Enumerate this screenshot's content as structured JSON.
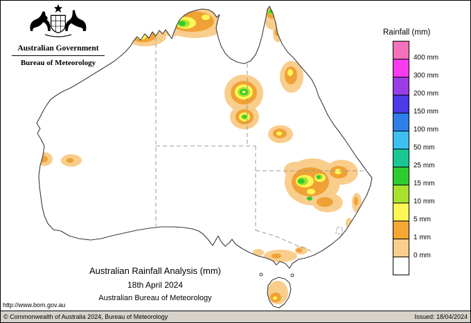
{
  "crest": {
    "line1": "Australian Government",
    "line2": "Bureau of Meteorology"
  },
  "legend": {
    "title": "Rainfall (mm)",
    "swatch_colors": [
      "#f472bb",
      "#fa3bee",
      "#9a3de6",
      "#4a3ae8",
      "#2f7fe8",
      "#3dc0f0",
      "#19c795",
      "#2ecc2e",
      "#a8e22f",
      "#fdf755",
      "#f5a733",
      "#f9cd8c",
      "#ffffff"
    ],
    "labels": [
      "400 mm",
      "300 mm",
      "200 mm",
      "150 mm",
      "100 mm",
      "50 mm",
      "25 mm",
      "15 mm",
      "10 mm",
      "5 mm",
      "1 mm",
      "0 mm"
    ]
  },
  "map": {
    "palette": {
      "coast": "#3a3a3a",
      "border": "#999999",
      "land": "#ffffff",
      "rain_1mm": "#f9cd8c",
      "rain_5mm": "#f0a135",
      "rain_10mm": "#fdf755",
      "rain_15mm": "#a8e22f",
      "rain_25mm": "#2ecc2e"
    }
  },
  "caption": {
    "title": "Australian Rainfall Analysis (mm)",
    "date": "18th April 2024",
    "org": "Australian Bureau of Meteorology"
  },
  "url": "http://www.bom.gov.au",
  "footer": {
    "left": "© Commonwealth of Australia 2024, Bureau of Meteorology",
    "right": "Issued: 18/04/2024"
  }
}
